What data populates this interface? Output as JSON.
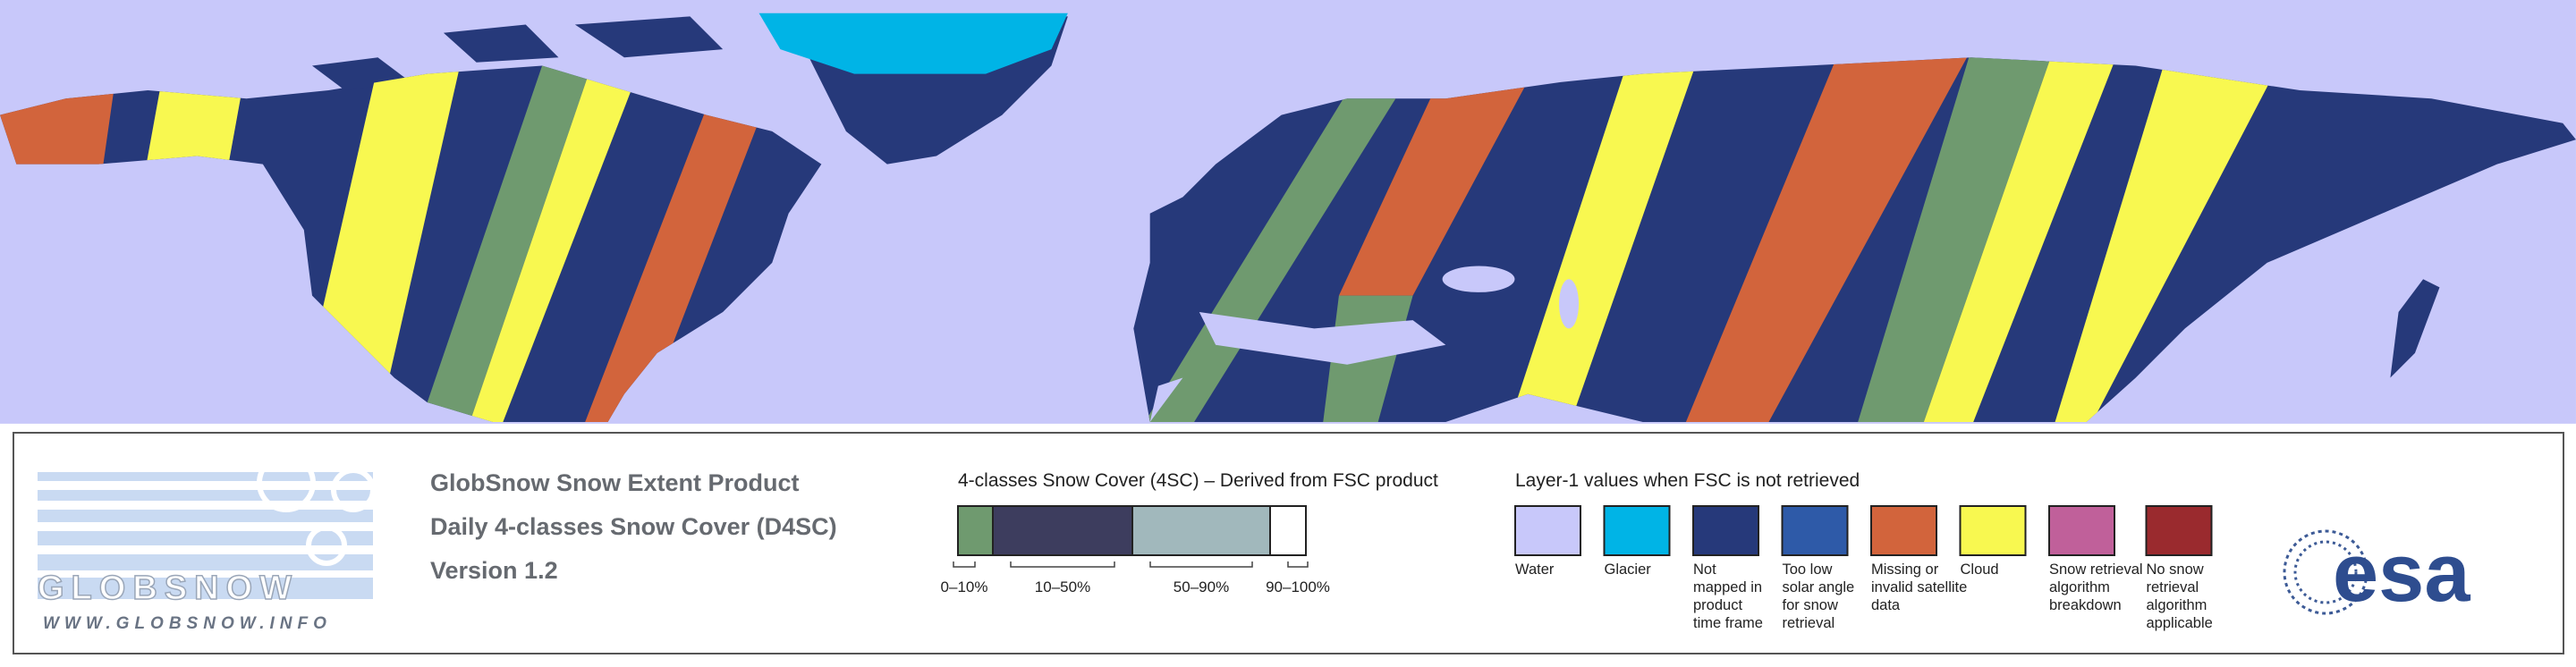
{
  "logo": {
    "name": "GLOBSNOW",
    "url": "WWW.GLOBSNOW.INFO"
  },
  "product": {
    "lines": [
      "GlobSnow Snow Extent Product",
      "Daily 4-classes Snow Cover (D4SC)",
      "Version 1.2"
    ]
  },
  "snow_cover_legend": {
    "title": "4-classes Snow Cover (4SC) – Derived from FSC product",
    "classes": [
      {
        "label": "0–10%",
        "color": "#6f9a6f"
      },
      {
        "label": "10–50%",
        "color": "#3d3d5e"
      },
      {
        "label": "50–90%",
        "color": "#a1b8bc"
      },
      {
        "label": "90–100%",
        "color": "#ffffff"
      }
    ]
  },
  "layer1_legend": {
    "title": "Layer-1 values when FSC is not retrieved",
    "items": [
      {
        "lines": [
          "Water"
        ],
        "color": "#c8c8fa"
      },
      {
        "lines": [
          "Glacier"
        ],
        "color": "#00b4e6"
      },
      {
        "lines": [
          "Not",
          "mapped in",
          "product",
          "time frame"
        ],
        "color": "#26397a"
      },
      {
        "lines": [
          "Too low",
          "solar angle",
          "for snow",
          "retrieval"
        ],
        "color": "#2e5aa8"
      },
      {
        "lines": [
          "Missing or",
          "invalid satellite",
          "data"
        ],
        "color": "#d2643c"
      },
      {
        "lines": [
          "Cloud"
        ],
        "color": "#f8f850"
      },
      {
        "lines": [
          "Snow retrieval",
          "algorithm",
          "breakdown"
        ],
        "color": "#c0609a"
      },
      {
        "lines": [
          "No snow",
          "retrieval",
          "algorithm",
          "applicable"
        ],
        "color": "#9a2a2e"
      }
    ]
  },
  "agency": {
    "name": "esa"
  }
}
